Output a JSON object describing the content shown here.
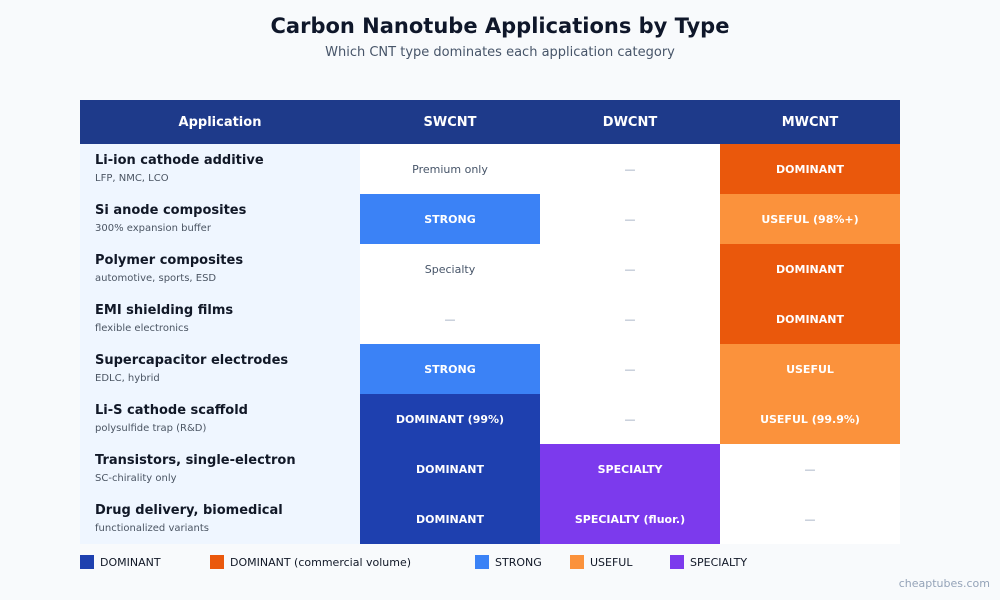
{
  "title": "Carbon Nanotube Applications by Type",
  "subtitle": "Which CNT type dominates each application category",
  "watermark": "cheaptubes.com",
  "colors": {
    "header": "#1e3a8a",
    "dominant": "#1e40af",
    "dominant_commercial": "#ea580c",
    "strong": "#3b82f6",
    "useful": "#fb923c",
    "specialty": "#7c3aed"
  },
  "chart_data": {
    "type": "table",
    "columns": [
      "Application",
      "SWCNT",
      "DWCNT",
      "MWCNT"
    ],
    "rows": [
      {
        "name": "Li-ion cathode additive",
        "sub": "LFP, NMC, LCO",
        "cells": [
          {
            "text": "Premium only",
            "level": "plain"
          },
          {
            "text": "—",
            "level": "none"
          },
          {
            "text": "DOMINANT",
            "level": "dominant-commercial"
          }
        ]
      },
      {
        "name": "Si anode composites",
        "sub": "300% expansion buffer",
        "cells": [
          {
            "text": "STRONG",
            "level": "strong"
          },
          {
            "text": "—",
            "level": "none"
          },
          {
            "text": "USEFUL (98%+)",
            "level": "useful"
          }
        ]
      },
      {
        "name": "Polymer composites",
        "sub": "automotive, sports, ESD",
        "cells": [
          {
            "text": "Specialty",
            "level": "plain"
          },
          {
            "text": "—",
            "level": "none"
          },
          {
            "text": "DOMINANT",
            "level": "dominant-commercial"
          }
        ]
      },
      {
        "name": "EMI shielding films",
        "sub": "flexible electronics",
        "cells": [
          {
            "text": "—",
            "level": "none"
          },
          {
            "text": "—",
            "level": "none"
          },
          {
            "text": "DOMINANT",
            "level": "dominant-commercial"
          }
        ]
      },
      {
        "name": "Supercapacitor electrodes",
        "sub": "EDLC, hybrid",
        "cells": [
          {
            "text": "STRONG",
            "level": "strong"
          },
          {
            "text": "—",
            "level": "none"
          },
          {
            "text": "USEFUL",
            "level": "useful"
          }
        ]
      },
      {
        "name": "Li-S cathode scaffold",
        "sub": "polysulfide trap (R&D)",
        "cells": [
          {
            "text": "DOMINANT (99%)",
            "level": "dominant"
          },
          {
            "text": "—",
            "level": "none"
          },
          {
            "text": "USEFUL (99.9%)",
            "level": "useful"
          }
        ]
      },
      {
        "name": "Transistors, single-electron",
        "sub": "SC-chirality only",
        "cells": [
          {
            "text": "DOMINANT",
            "level": "dominant"
          },
          {
            "text": "SPECIALTY",
            "level": "specialty"
          },
          {
            "text": "—",
            "level": "none"
          }
        ]
      },
      {
        "name": "Drug delivery, biomedical",
        "sub": "functionalized variants",
        "cells": [
          {
            "text": "DOMINANT",
            "level": "dominant"
          },
          {
            "text": "SPECIALTY (fluor.)",
            "level": "specialty"
          },
          {
            "text": "—",
            "level": "none"
          }
        ]
      }
    ],
    "legend": [
      {
        "label": "DOMINANT",
        "level": "dominant"
      },
      {
        "label": "DOMINANT (commercial volume)",
        "level": "dominant-commercial"
      },
      {
        "label": "STRONG",
        "level": "strong"
      },
      {
        "label": "USEFUL",
        "level": "useful"
      },
      {
        "label": "SPECIALTY",
        "level": "specialty"
      }
    ]
  }
}
